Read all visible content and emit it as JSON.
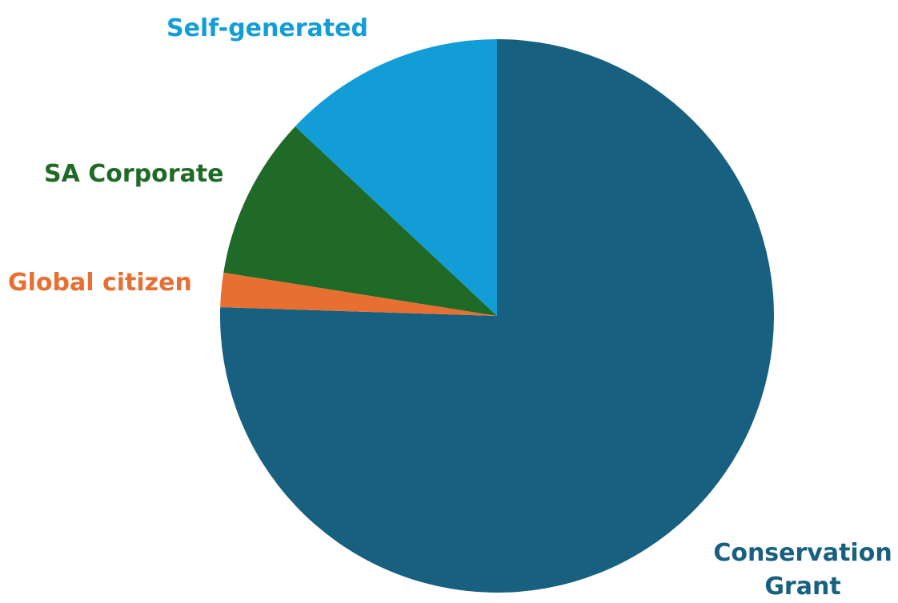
{
  "chart_data": {
    "type": "pie",
    "title": "",
    "start_angle_deg": 0,
    "direction": "clockwise",
    "slices": [
      {
        "label": "Conservation Grant",
        "label_lines": [
          "Conservation",
          "Grant"
        ],
        "value": 75.5,
        "color": "#17607f"
      },
      {
        "label": "Global citizen",
        "label_lines": [
          "Global citizen"
        ],
        "value": 2.0,
        "color": "#e86f32"
      },
      {
        "label": "SA Corporate",
        "label_lines": [
          "SA Corporate"
        ],
        "value": 9.5,
        "color": "#1f6a26"
      },
      {
        "label": "Self-generated",
        "label_lines": [
          "Self-generated"
        ],
        "value": 13.0,
        "color": "#139dd7"
      }
    ]
  }
}
